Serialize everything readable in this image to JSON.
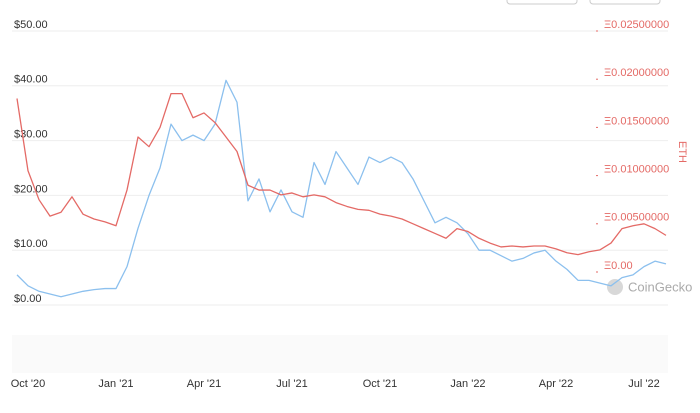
{
  "chart_data": {
    "type": "line",
    "categories": [
      null,
      "Oct '20",
      null,
      null,
      null,
      null,
      null,
      null,
      null,
      "Jan '21",
      null,
      null,
      null,
      null,
      null,
      null,
      null,
      "Apr '21",
      null,
      null,
      null,
      null,
      null,
      null,
      null,
      "Jul '21",
      null,
      null,
      null,
      null,
      null,
      null,
      null,
      "Oct '21",
      null,
      null,
      null,
      null,
      null,
      null,
      null,
      "Jan '22",
      null,
      null,
      null,
      null,
      null,
      null,
      null,
      "Apr '22",
      null,
      null,
      null,
      null,
      null,
      null,
      null,
      "Jul '22",
      null,
      null
    ],
    "series": [
      {
        "color": "#8cc0ee",
        "values": [
          5.5,
          3.5,
          2.5,
          2,
          1.5,
          2,
          2.5,
          2.8,
          3,
          3,
          7,
          14,
          20,
          25,
          33,
          30,
          31,
          30,
          33,
          41,
          37,
          19,
          23,
          17,
          21,
          17,
          16,
          26,
          22,
          28,
          25,
          22,
          27,
          26,
          27,
          26,
          23,
          19,
          15,
          16,
          15,
          13,
          10,
          10,
          9,
          8,
          8.5,
          9.5,
          10,
          8,
          6.5,
          4.5,
          4.5,
          4,
          3.5,
          5,
          5.5,
          7,
          8,
          7.5
        ]
      },
      {
        "color": "#e46a66",
        "axis": "y2",
        "values": [
          0.018,
          0.0105,
          0.0075,
          0.0058,
          0.0062,
          0.0078,
          0.006,
          0.0055,
          0.0052,
          0.0048,
          0.0085,
          0.014,
          0.013,
          0.015,
          0.0185,
          0.0185,
          0.016,
          0.0165,
          0.0155,
          0.014,
          0.0125,
          0.009,
          0.0085,
          0.0085,
          0.008,
          0.0082,
          0.0078,
          0.008,
          0.0078,
          0.0072,
          0.0068,
          0.0065,
          0.0064,
          0.006,
          0.0058,
          0.0055,
          0.005,
          0.0045,
          0.004,
          0.0035,
          0.0045,
          0.0042,
          0.0035,
          0.003,
          0.0026,
          0.0027,
          0.0026,
          0.0027,
          0.0027,
          0.0024,
          0.002,
          0.0018,
          0.0021,
          0.0023,
          0.003,
          0.0045,
          0.0048,
          0.005,
          0.0045,
          0.0038
        ]
      }
    ],
    "ylim": [
      0,
      50
    ],
    "yticks": [
      {
        "value": 0,
        "label": "$0.00"
      },
      {
        "value": 10,
        "label": "$10.00"
      },
      {
        "value": 20,
        "label": "$20.00"
      },
      {
        "value": 30,
        "label": "$30.00"
      },
      {
        "value": 40,
        "label": "$40.00"
      },
      {
        "value": 50,
        "label": "$50.00"
      }
    ],
    "y2lim": [
      0,
      0.025
    ],
    "y2ticks": [
      {
        "value": 0,
        "label": "Ξ0.00"
      },
      {
        "value": 0.005,
        "label": "Ξ0.00500000"
      },
      {
        "value": 0.01,
        "label": "Ξ0.01000000"
      },
      {
        "value": 0.015,
        "label": "Ξ0.01500000"
      },
      {
        "value": 0.02,
        "label": "Ξ0.02000000"
      },
      {
        "value": 0.025,
        "label": "Ξ0.02500000"
      }
    ],
    "y2label": "ETH",
    "y2color": "#e46a66",
    "grid": true,
    "watermark": "CoinGecko"
  }
}
